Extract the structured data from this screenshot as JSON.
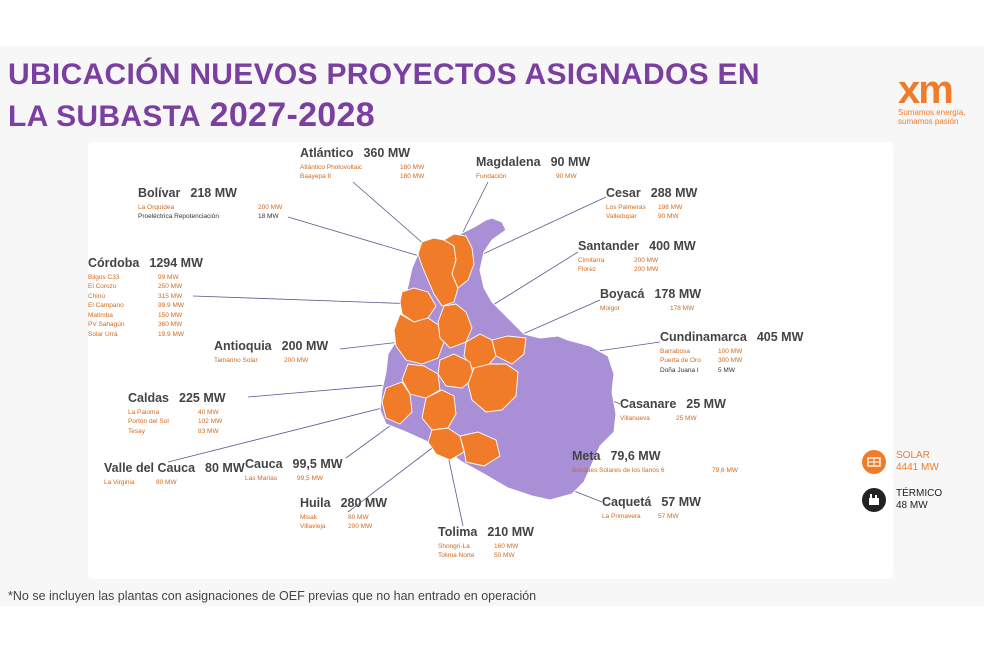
{
  "title": {
    "line1": "Ubicación nuevos proyectos asignados en",
    "line2": "la subasta",
    "years": "2027-2028"
  },
  "logo": {
    "mark": "xm",
    "tagline1": "Sumamos energía,",
    "tagline2": "sumamos pasión"
  },
  "colors": {
    "solar": "#f07c2a",
    "map_other": "#a98fd6",
    "title": "#7b3fa0"
  },
  "departments": [
    {
      "name": "Atlántico",
      "mw": "360 MW",
      "projects": [
        {
          "name": "Atlántico Photovoltaic",
          "mw": "180 MW"
        },
        {
          "name": "Baayepa II",
          "mw": "180 MW"
        }
      ]
    },
    {
      "name": "Magdalena",
      "mw": "90 MW",
      "projects": [
        {
          "name": "Fundación",
          "mw": "90 MW"
        }
      ]
    },
    {
      "name": "Bolívar",
      "mw": "218 MW",
      "projects": [
        {
          "name": "La Orquídea",
          "mw": "200 MW"
        },
        {
          "name": "Proeléctrica Repotenciación",
          "mw": "18 MW",
          "dark": true
        }
      ]
    },
    {
      "name": "Cesar",
      "mw": "288 MW",
      "projects": [
        {
          "name": "Los Palmeras",
          "mw": "198 MW"
        },
        {
          "name": "Valledupar",
          "mw": "90 MW"
        }
      ]
    },
    {
      "name": "Santander",
      "mw": "400 MW",
      "projects": [
        {
          "name": "Cimitarra",
          "mw": "200 MW"
        },
        {
          "name": "Florez",
          "mw": "200 MW"
        }
      ]
    },
    {
      "name": "Córdoba",
      "mw": "1294 MW",
      "projects": [
        {
          "name": "Bilgos C33",
          "mw": "99 MW"
        },
        {
          "name": "El Corozo",
          "mw": "250 MW"
        },
        {
          "name": "Chinú",
          "mw": "315 MW"
        },
        {
          "name": "El Campano",
          "mw": "99.9 MW"
        },
        {
          "name": "Matimba",
          "mw": "150 MW"
        },
        {
          "name": "PV Sahagún",
          "mw": "360 MW"
        },
        {
          "name": "Solar Urrá",
          "mw": "19.9 MW"
        }
      ]
    },
    {
      "name": "Boyacá",
      "mw": "178 MW",
      "projects": [
        {
          "name": "Moigor",
          "mw": "178 MW"
        }
      ]
    },
    {
      "name": "Antioquia",
      "mw": "200 MW",
      "projects": [
        {
          "name": "Tamarino Solar",
          "mw": "200 MW"
        }
      ]
    },
    {
      "name": "Cundinamarca",
      "mw": "405 MW",
      "projects": [
        {
          "name": "Barrabosa",
          "mw": "100 MW"
        },
        {
          "name": "Puerta de Oro",
          "mw": "300 MW"
        },
        {
          "name": "Doña Juana I",
          "mw": "5 MW",
          "dark": true
        }
      ]
    },
    {
      "name": "Caldas",
      "mw": "225 MW",
      "projects": [
        {
          "name": "La Paloma",
          "mw": "40 MW"
        },
        {
          "name": "Portón del Sol",
          "mw": "102 MW"
        },
        {
          "name": "Tesay",
          "mw": "83 MW"
        }
      ]
    },
    {
      "name": "Casanare",
      "mw": "25 MW",
      "projects": [
        {
          "name": "Villanueva",
          "mw": "25 MW"
        }
      ]
    },
    {
      "name": "Meta",
      "mw": "79,6 MW",
      "projects": [
        {
          "name": "Bosques Solares de los llanos 6",
          "mw": "79,6 MW"
        }
      ]
    },
    {
      "name": "Valle del Cauca",
      "mw": "80 MW",
      "projects": [
        {
          "name": "La Virginia",
          "mw": "80 MW"
        }
      ]
    },
    {
      "name": "Cauca",
      "mw": "99,5 MW",
      "projects": [
        {
          "name": "Las Marías",
          "mw": "99,5 MW"
        }
      ]
    },
    {
      "name": "Huila",
      "mw": "280 MW",
      "projects": [
        {
          "name": "Misak",
          "mw": "80 MW"
        },
        {
          "name": "Villavieja",
          "mw": "200 MW"
        }
      ]
    },
    {
      "name": "Caquetá",
      "mw": "57 MW",
      "projects": [
        {
          "name": "La Primavera",
          "mw": "57 MW"
        }
      ]
    },
    {
      "name": "Tolima",
      "mw": "210 MW",
      "projects": [
        {
          "name": "Shongri-La",
          "mw": "160 MW"
        },
        {
          "name": "Tolima Norte",
          "mw": "50 MW"
        }
      ]
    }
  ],
  "legend": [
    {
      "label": "SOLAR",
      "value": "4441 MW",
      "icon": "solar-panel-icon",
      "color": "#f07c2a"
    },
    {
      "label": "TÉRMICO",
      "value": "48 MW",
      "icon": "thermal-plant-icon",
      "color": "#222222"
    }
  ],
  "footnote": "*No se incluyen las plantas con asignaciones de OEF previas que no han entrado en operación"
}
